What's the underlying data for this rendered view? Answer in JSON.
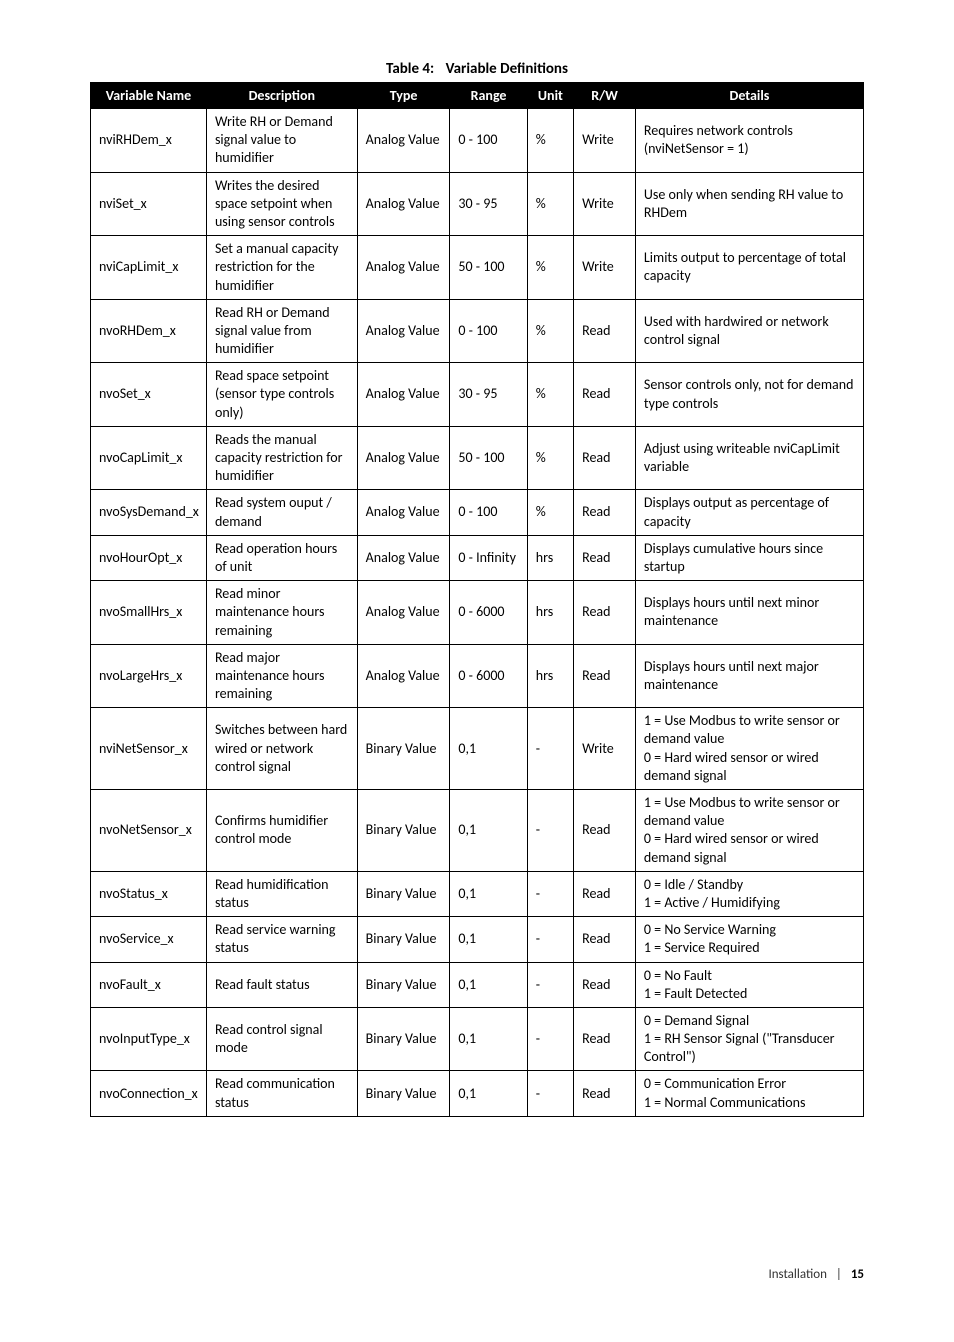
{
  "caption": {
    "label": "Table 4:",
    "title": "Variable Definitions"
  },
  "columns": [
    "Variable Name",
    "Description",
    "Type",
    "Range",
    "Unit",
    "R/W",
    "Details"
  ],
  "rows": [
    [
      "nviRHDem_x",
      "Write RH or Demand signal value to humidifier",
      "Analog Value",
      "0 - 100",
      "%",
      "Write",
      "Requires network controls (nviNetSensor = 1)"
    ],
    [
      "nviSet_x",
      "Writes the desired space setpoint when using sensor controls",
      "Analog Value",
      "30 - 95",
      "%",
      "Write",
      "Use only when sending RH value to RHDem"
    ],
    [
      "nviCapLimit_x",
      "Set a manual capacity restriction for the humidifier",
      "Analog Value",
      "50 - 100",
      "%",
      "Write",
      "Limits output to percentage of total capacity"
    ],
    [
      "nvoRHDem_x",
      "Read RH or Demand signal value from humidifier",
      "Analog Value",
      "0 - 100",
      "%",
      "Read",
      "Used with hardwired or network control signal"
    ],
    [
      "nvoSet_x",
      "Read space setpoint (sensor type controls only)",
      "Analog Value",
      "30 - 95",
      "%",
      "Read",
      "Sensor controls only, not for demand type controls"
    ],
    [
      "nvoCapLimit_x",
      "Reads the manual capacity restriction for humidifier",
      "Analog Value",
      "50 - 100",
      "%",
      "Read",
      "Adjust using writeable nviCapLimit variable"
    ],
    [
      "nvoSysDemand_x",
      "Read system ouput / demand",
      "Analog Value",
      "0 - 100",
      "%",
      "Read",
      "Displays output as percentage of capacity"
    ],
    [
      "nvoHourOpt_x",
      "Read operation hours of unit",
      "Analog Value",
      "0 - Infinity",
      "hrs",
      "Read",
      "Displays cumulative hours since startup"
    ],
    [
      "nvoSmallHrs_x",
      "Read minor maintenance hours remaining",
      "Analog Value",
      "0 - 6000",
      "hrs",
      "Read",
      "Displays hours until next minor maintenance"
    ],
    [
      "nvoLargeHrs_x",
      "Read major maintenance hours remaining",
      "Analog Value",
      "0 - 6000",
      "hrs",
      "Read",
      "Displays hours until next major maintenance"
    ],
    [
      "nviNetSensor_x",
      "Switches between hard wired or network control signal",
      "Binary Value",
      "0,1",
      "-",
      "Write",
      "1 = Use Modbus to write sensor or demand value\n0 = Hard wired sensor or wired demand signal"
    ],
    [
      "nvoNetSensor_x",
      "Confirms humidifier control mode",
      "Binary Value",
      "0,1",
      "-",
      "Read",
      "1 = Use Modbus to write sensor or demand value\n0 = Hard wired sensor or wired demand signal"
    ],
    [
      "nvoStatus_x",
      "Read humidification status",
      "Binary Value",
      "0,1",
      "-",
      "Read",
      "0 = Idle / Standby\n1 = Active / Humidifying"
    ],
    [
      "nvoService_x",
      "Read service warning status",
      "Binary Value",
      "0,1",
      "-",
      "Read",
      "0 = No Service Warning\n1 = Service Required"
    ],
    [
      "nvoFault_x",
      "Read fault status",
      "Binary Value",
      "0,1",
      "-",
      "Read",
      "0 = No Fault\n1 = Fault Detected"
    ],
    [
      "nvoInputType_x",
      "Read control signal mode",
      "Binary Value",
      "0,1",
      "-",
      "Read",
      "0 = Demand Signal\n1 = RH Sensor Signal (\"Transducer Control\")"
    ],
    [
      "nvoConnection_x",
      "Read communication status",
      "Binary Value",
      "0,1",
      "-",
      "Read",
      "0 = Communication Error\n1 = Normal Communications"
    ]
  ],
  "footer": {
    "section": "Installation",
    "sep": "|",
    "page": "15"
  }
}
